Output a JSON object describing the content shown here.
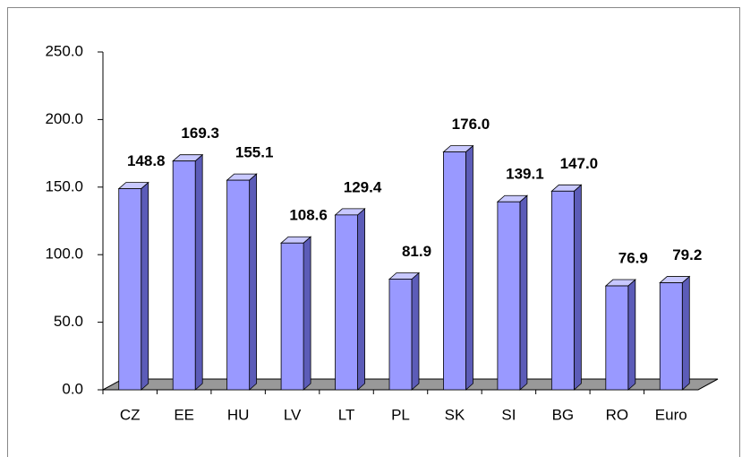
{
  "chart_data": {
    "type": "bar3d",
    "categories": [
      "CZ",
      "EE",
      "HU",
      "LV",
      "LT",
      "PL",
      "SK",
      "SI",
      "BG",
      "RO",
      "Euro"
    ],
    "values": [
      148.8,
      169.3,
      155.1,
      108.6,
      129.4,
      81.9,
      176.0,
      139.1,
      147.0,
      76.9,
      79.2
    ],
    "value_labels": [
      "148.8",
      "169.3",
      "155.1",
      "108.6",
      "129.4",
      "81.9",
      "176.0",
      "139.1",
      "147.0",
      "76.9",
      "79.2"
    ],
    "color": "#9999ff",
    "ylim": [
      0,
      250
    ],
    "yticks": [
      {
        "value": 0,
        "label": "0.0"
      },
      {
        "value": 50,
        "label": "50.0"
      },
      {
        "value": 100,
        "label": "100.0"
      },
      {
        "value": 150,
        "label": "150.0"
      },
      {
        "value": 200,
        "label": "200.0"
      },
      {
        "value": 250,
        "label": "250.0"
      }
    ]
  }
}
